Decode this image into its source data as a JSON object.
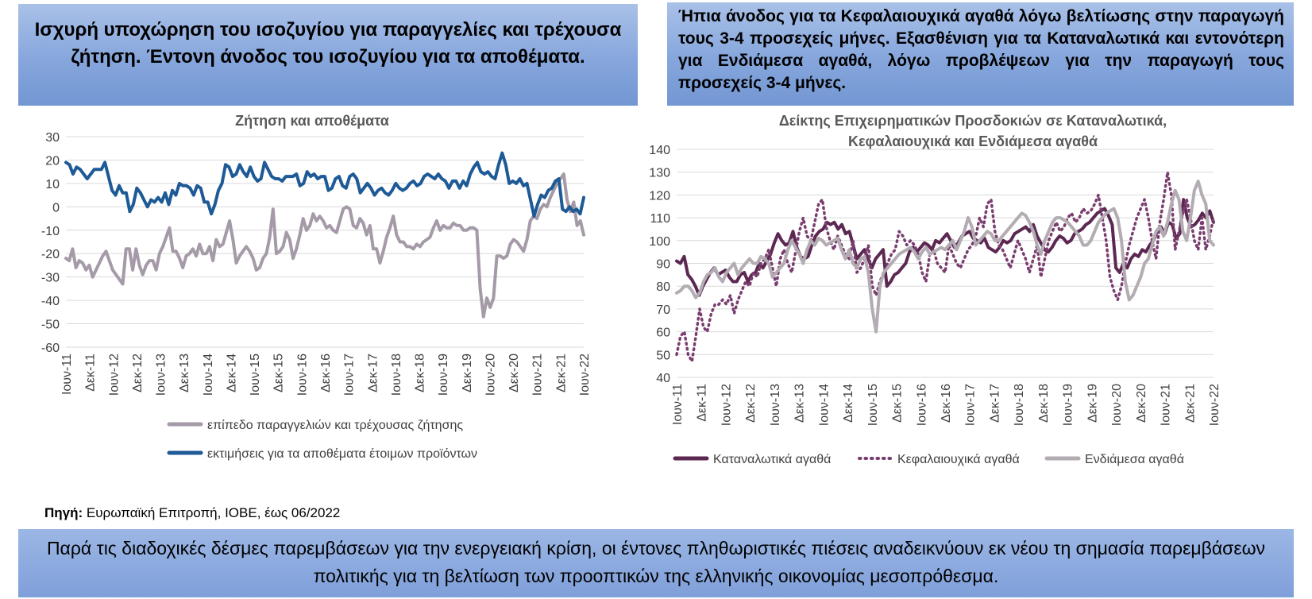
{
  "left_header": "Ισχυρή υποχώρηση του ισοζυγίου για παραγγελίες και τρέχουσα ζήτηση. Έντονη άνοδος του ισοζυγίου για τα αποθέματα.",
  "right_header": "Ήπια άνοδος για τα Κεφαλαιουχικά αγαθά λόγω βελτίωσης στην παραγωγή τους 3-4 προσεχείς μήνες. Εξασθένιση για τα Καταναλωτικά και εντονότερη για Ενδιάμεσα αγαθά, λόγω προβλέψεων για την παραγωγή τους προσεχείς 3-4 μήνες.",
  "source_label": "Πηγή:",
  "source_text": " Ευρωπαϊκή Επιτροπή, ΙΟΒΕ, έως 06/2022",
  "bottom_text": "Παρά τις διαδοχικές δέσμες παρεμβάσεων για την ενεργειακή κρίση, οι έντονες πληθωριστικές πιέσεις αναδεικνύουν εκ νέου τη σημασία παρεμβάσεων πολιτικής για τη βελτίωση των προοπτικών της ελληνικής οικονομίας μεσοπρόθεσμα.",
  "chart_data": [
    {
      "type": "line",
      "title": "Ζήτηση και αποθέματα",
      "xlabel": "",
      "ylabel": "",
      "ylim": [
        -60,
        30
      ],
      "yticks": [
        30,
        20,
        10,
        0,
        -10,
        -20,
        -30,
        -40,
        -50,
        -60
      ],
      "grid": true,
      "legend_position": "bottom",
      "xticks": [
        "Ιουν-11",
        "Δεκ-11",
        "Ιουν-12",
        "Δεκ-12",
        "Ιουν-13",
        "Δεκ-13",
        "Ιουν-14",
        "Δεκ-14",
        "Ιουν-15",
        "Δεκ-15",
        "Ιουν-16",
        "Δεκ-16",
        "Ιουν-17",
        "Δεκ-17",
        "Ιουν-18",
        "Δεκ-18",
        "Ιουν-19",
        "Δεκ-19",
        "Ιουν-20",
        "Δεκ-20",
        "Ιουν-21",
        "Δεκ-21",
        "Ιουν-22"
      ],
      "series": [
        {
          "name": "επίπεδο παραγγελιών και τρέχουσας ζήτησης",
          "color": "#a59aa7",
          "style": "solid",
          "values": [
            -22,
            -23,
            -18,
            -26,
            -23,
            -24,
            -27,
            -25,
            -30,
            -27,
            -24,
            -21,
            -19,
            -23,
            -27,
            -29,
            -31,
            -33,
            -18,
            -18,
            -27,
            -18,
            -25,
            -29,
            -25,
            -23,
            -23,
            -27,
            -20,
            -17,
            -13,
            -9,
            -19,
            -19,
            -22,
            -26,
            -21,
            -20,
            -18,
            -21,
            -16,
            -20,
            -20,
            -17,
            -23,
            -14,
            -17,
            -16,
            -11,
            -6,
            -14,
            -24,
            -21,
            -19,
            -17,
            -19,
            -22,
            -27,
            -26,
            -22,
            -20,
            -13,
            -1,
            -20,
            -19,
            -17,
            -11,
            -14,
            -22,
            -18,
            -12,
            -5,
            -10,
            -8,
            -3,
            -6,
            -4,
            -6,
            -9,
            -8,
            -10,
            -11,
            -6,
            -1,
            0,
            -1,
            -8,
            -9,
            -5,
            -7,
            -12,
            -8,
            -18,
            -18,
            -24,
            -19,
            -13,
            -9,
            -4,
            -12,
            -15,
            -15,
            -17,
            -17,
            -18,
            -16,
            -17,
            -15,
            -14,
            -13,
            -9,
            -6,
            -10,
            -8,
            -9,
            -9,
            -7,
            -8,
            -8,
            -10,
            -10,
            -9,
            -9,
            -10,
            -35,
            -47,
            -39,
            -43,
            -39,
            -21,
            -21,
            -22,
            -21,
            -16,
            -14,
            -15,
            -17,
            -19,
            -14,
            -6,
            -4,
            -5,
            -1,
            1,
            0,
            4,
            7,
            10,
            12,
            14,
            3,
            -2,
            2,
            -8,
            -6,
            -12
          ]
        },
        {
          "name": "εκτιμήσεις για τα αποθέματα έτοιμων προϊόντων",
          "color": "#1d5a96",
          "style": "solid",
          "values": [
            19,
            18,
            14,
            17,
            16,
            14,
            12,
            14,
            16,
            16,
            16,
            19,
            13,
            7,
            5,
            9,
            6,
            6,
            -2,
            1,
            8,
            6,
            3,
            0,
            3,
            2,
            4,
            2,
            6,
            1,
            7,
            5,
            10,
            9,
            9,
            8,
            5,
            9,
            8,
            2,
            2,
            -3,
            1,
            7,
            10,
            18,
            17,
            13,
            14,
            18,
            15,
            13,
            17,
            13,
            11,
            12,
            19,
            16,
            13,
            12,
            12,
            11,
            13,
            13,
            13,
            14,
            9,
            10,
            15,
            13,
            14,
            12,
            13,
            13,
            7,
            8,
            12,
            13,
            9,
            8,
            13,
            14,
            12,
            6,
            8,
            10,
            8,
            5,
            7,
            8,
            6,
            5,
            7,
            10,
            8,
            7,
            8,
            10,
            11,
            9,
            10,
            13,
            14,
            13,
            12,
            14,
            12,
            11,
            8,
            11,
            11,
            8,
            11,
            9,
            14,
            17,
            19,
            15,
            14,
            15,
            13,
            12,
            18,
            23,
            18,
            10,
            11,
            10,
            12,
            9,
            10,
            3,
            -4,
            1,
            5,
            4,
            7,
            8,
            11,
            12,
            -1,
            -2,
            0,
            -2,
            -1,
            -3,
            4
          ]
        }
      ]
    },
    {
      "type": "line",
      "title": "Δείκτης Επιχειρηματικών Προσδοκιών σε Καταναλωτικά, Κεφαλαιουχικά και Ενδιάμεσα αγαθά",
      "xlabel": "",
      "ylabel": "",
      "ylim": [
        40,
        140
      ],
      "yticks": [
        140,
        130,
        120,
        110,
        100,
        90,
        80,
        70,
        60,
        50,
        40
      ],
      "grid": true,
      "legend_position": "bottom",
      "xticks": [
        "Ιουν-11",
        "Δεκ-11",
        "Ιουν-12",
        "Δεκ-12",
        "Ιουν-13",
        "Δεκ-13",
        "Ιουν-14",
        "Δεκ-14",
        "Ιουν-15",
        "Δεκ-15",
        "Ιουν-16",
        "Δεκ-16",
        "Ιουν-17",
        "Δεκ-17",
        "Ιουν-18",
        "Δεκ-18",
        "Ιουν-19",
        "Δεκ-19",
        "Ιουν-20",
        "Δεκ-20",
        "Ιουν-21",
        "Δεκ-21",
        "Ιουν-22"
      ],
      "series": [
        {
          "name": "Καταναλωτικά αγαθά",
          "color": "#5c2852",
          "style": "solid",
          "values": [
            91,
            90,
            93,
            85,
            83,
            80,
            76,
            80,
            83,
            86,
            88,
            85,
            86,
            87,
            84,
            82,
            82,
            85,
            86,
            82,
            85,
            86,
            90,
            88,
            91,
            94,
            99,
            103,
            100,
            98,
            99,
            104,
            97,
            93,
            92,
            93,
            98,
            102,
            104,
            105,
            108,
            107,
            108,
            105,
            107,
            103,
            104,
            98,
            92,
            94,
            96,
            92,
            88,
            92,
            94,
            96,
            80,
            82,
            85,
            86,
            88,
            90,
            95,
            97,
            95,
            97,
            99,
            98,
            96,
            100,
            99,
            101,
            103,
            100,
            97,
            99,
            102,
            103,
            104,
            101,
            100,
            99,
            101,
            97,
            96,
            95,
            97,
            100,
            99,
            100,
            103,
            104,
            105,
            106,
            104,
            107,
            102,
            99,
            96,
            95,
            97,
            100,
            102,
            101,
            99,
            100,
            103,
            104,
            105,
            107,
            108,
            110,
            112,
            113,
            114,
            111,
            107,
            88,
            86,
            90,
            88,
            92,
            94,
            93,
            96,
            95,
            98,
            100,
            104,
            106,
            103,
            108,
            107,
            101,
            103,
            118,
            110,
            106,
            107,
            109,
            112,
            110,
            113,
            108
          ]
        },
        {
          "name": "Κεφαλαιουχικά αγαθά",
          "color": "#7a3d6f",
          "style": "dotted",
          "values": [
            50,
            58,
            60,
            50,
            47,
            58,
            70,
            62,
            60,
            68,
            72,
            72,
            74,
            72,
            76,
            68,
            74,
            78,
            82,
            80,
            86,
            84,
            90,
            92,
            96,
            88,
            80,
            92,
            96,
            90,
            86,
            95,
            104,
            110,
            102,
            100,
            108,
            116,
            118,
            106,
            100,
            96,
            102,
            98,
            94,
            92,
            100,
            86,
            88,
            92,
            98,
            80,
            76,
            82,
            86,
            90,
            94,
            96,
            104,
            102,
            98,
            100,
            98,
            94,
            86,
            82,
            94,
            96,
            90,
            88,
            86,
            98,
            94,
            90,
            88,
            92,
            96,
            98,
            102,
            110,
            106,
            116,
            118,
            104,
            98,
            96,
            92,
            88,
            94,
            100,
            96,
            92,
            86,
            92,
            98,
            84,
            92,
            100,
            104,
            108,
            104,
            106,
            110,
            112,
            108,
            110,
            114,
            112,
            113,
            116,
            120,
            110,
            100,
            84,
            78,
            74,
            80,
            90,
            98,
            104,
            110,
            114,
            118,
            110,
            100,
            92,
            108,
            118,
            130,
            120,
            96,
            104,
            112,
            118,
            110,
            100,
            96,
            110,
            96,
            102,
            110
          ]
        },
        {
          "name": "Ενδιάμεσα αγαθά",
          "color": "#b3acb3",
          "style": "solid",
          "values": [
            77,
            78,
            80,
            80,
            78,
            75,
            77,
            82,
            85,
            86,
            88,
            84,
            82,
            86,
            88,
            90,
            85,
            88,
            90,
            92,
            90,
            90,
            93,
            92,
            90,
            84,
            86,
            88,
            90,
            96,
            100,
            97,
            94,
            90,
            96,
            100,
            98,
            101,
            100,
            98,
            99,
            100,
            101,
            96,
            92,
            96,
            90,
            88,
            92,
            93,
            86,
            70,
            60,
            80,
            86,
            88,
            90,
            92,
            94,
            95,
            96,
            97,
            95,
            92,
            95,
            97,
            94,
            95,
            96,
            97,
            96,
            98,
            100,
            96,
            100,
            104,
            110,
            106,
            98,
            100,
            102,
            104,
            103,
            100,
            100,
            102,
            104,
            106,
            108,
            110,
            112,
            111,
            108,
            104,
            98,
            94,
            100,
            104,
            108,
            110,
            110,
            109,
            108,
            106,
            104,
            102,
            98,
            98,
            100,
            104,
            108,
            110,
            112,
            113,
            114,
            110,
            100,
            82,
            74,
            76,
            80,
            84,
            90,
            92,
            98,
            104,
            106,
            102,
            108,
            116,
            122,
            118,
            104,
            100,
            110,
            122,
            126,
            120,
            116,
            100,
            98
          ]
        }
      ]
    }
  ]
}
